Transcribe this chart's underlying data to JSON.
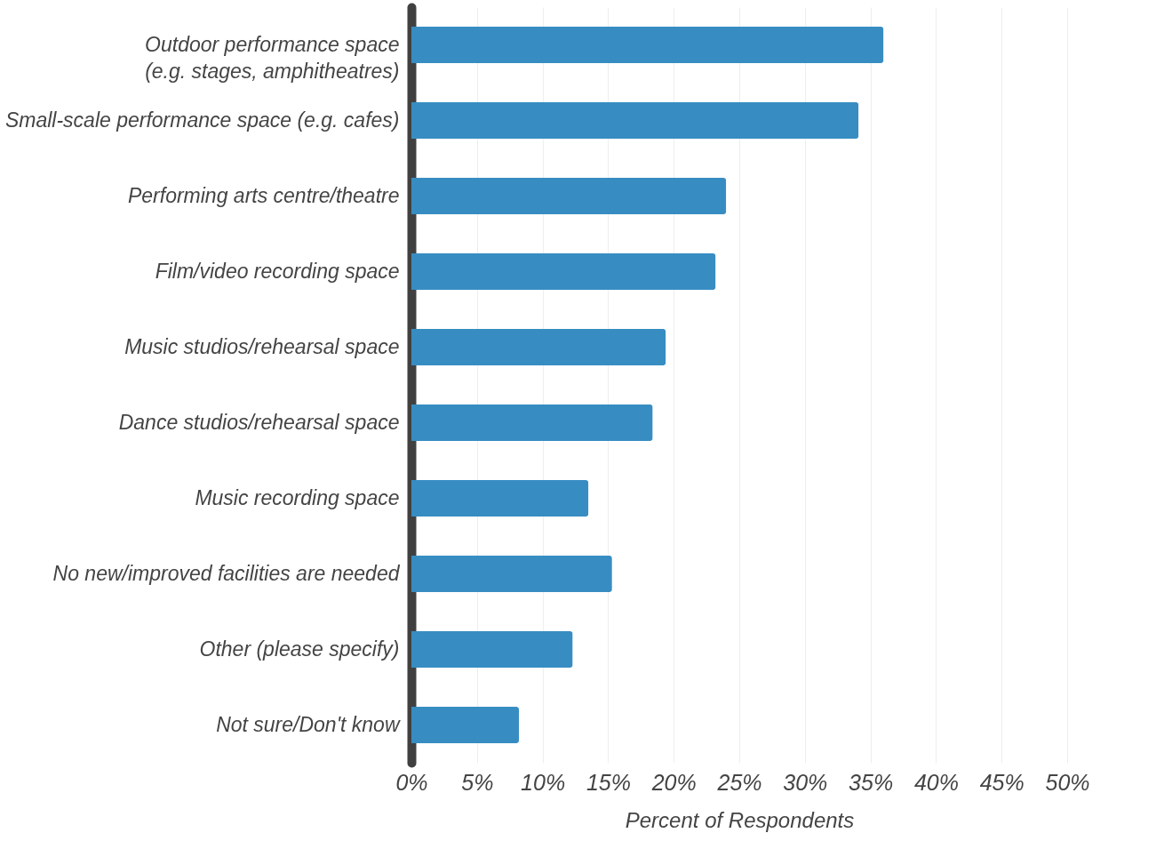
{
  "chart_data": {
    "type": "bar",
    "orientation": "horizontal",
    "xlabel": "Percent of Respondents",
    "categories": [
      "Outdoor performance space\n(e.g. stages, amphitheatres)",
      "Small-scale performance space (e.g. cafes)",
      "Performing arts centre/theatre",
      "Film/video recording space",
      "Music studios/rehearsal space",
      "Dance studios/rehearsal space",
      "Music recording space",
      "No new/improved facilities are needed",
      "Other (please specify)",
      "Not sure/Don't know"
    ],
    "values": [
      36.0,
      34.1,
      24.0,
      23.2,
      19.4,
      18.4,
      13.5,
      15.3,
      12.3,
      8.2
    ],
    "color": "#378dc2",
    "xlim": [
      0,
      50
    ],
    "xticks": [
      {
        "value": 0,
        "label": "0%"
      },
      {
        "value": 5,
        "label": "5%"
      },
      {
        "value": 10,
        "label": "10%"
      },
      {
        "value": 15,
        "label": "15%"
      },
      {
        "value": 20,
        "label": "20%"
      },
      {
        "value": 25,
        "label": "25%"
      },
      {
        "value": 30,
        "label": "30%"
      },
      {
        "value": 35,
        "label": "35%"
      },
      {
        "value": 40,
        "label": "40%"
      },
      {
        "value": 45,
        "label": "45%"
      },
      {
        "value": 50,
        "label": "50%"
      }
    ],
    "grid": "x"
  }
}
